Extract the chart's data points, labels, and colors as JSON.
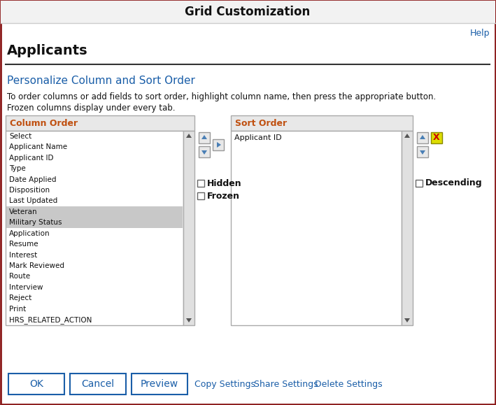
{
  "title": "Grid Customization",
  "title_bg": "#f2f2f2",
  "title_border_top": "#8b1a1a",
  "title_border_bottom": "#cccccc",
  "help_text": "Help",
  "help_color": "#1a5ea8",
  "applicants_label": "Applicants",
  "personalize_label": "Personalize Column and Sort Order",
  "personalize_color": "#1a5ea8",
  "instruction_line1": "To order columns or add fields to sort order, highlight column name, then press the appropriate button.",
  "instruction_line2": "Frozen columns display under every tab.",
  "column_order_label": "Column Order",
  "column_order_color": "#c05010",
  "sort_order_label": "Sort Order",
  "sort_order_color": "#c05010",
  "column_items": [
    "Select",
    "Applicant Name",
    "Applicant ID",
    "Type",
    "Date Applied",
    "Disposition",
    "Last Updated",
    "Veteran",
    "Military Status",
    "Application",
    "Resume",
    "Interest",
    "Mark Reviewed",
    "Route",
    "Interview",
    "Reject",
    "Print",
    "HRS_RELATED_ACTION"
  ],
  "highlighted_items": [
    "Veteran",
    "Military Status"
  ],
  "highlight_color": "#c8c8c8",
  "sort_items": [
    "Applicant ID"
  ],
  "listbox_bg": "#ffffff",
  "listbox_border": "#aaaaaa",
  "panel_header_bg": "#e8e8e8",
  "panel_bg": "#f5f5f5",
  "main_bg": "#ffffff",
  "button_labels": [
    "OK",
    "Cancel",
    "Preview"
  ],
  "button_color": "#ffffff",
  "button_border": "#1a5ea8",
  "button_text_color": "#1a5ea8",
  "link_labels": [
    "Copy Settings",
    "Share Settings",
    "Delete Settings"
  ],
  "link_color": "#1a5ea8",
  "checkbox_labels_left": [
    "Hidden",
    "Frozen"
  ],
  "checkbox_label_right": "Descending",
  "outer_border_color": "#8b1a1a",
  "separator_color": "#333333",
  "arrow_color": "#4a7fb5",
  "x_button_bg": "#dddd00",
  "x_button_border": "#888800",
  "x_button_color": "#cc0000",
  "scroll_bg": "#e0e0e0"
}
